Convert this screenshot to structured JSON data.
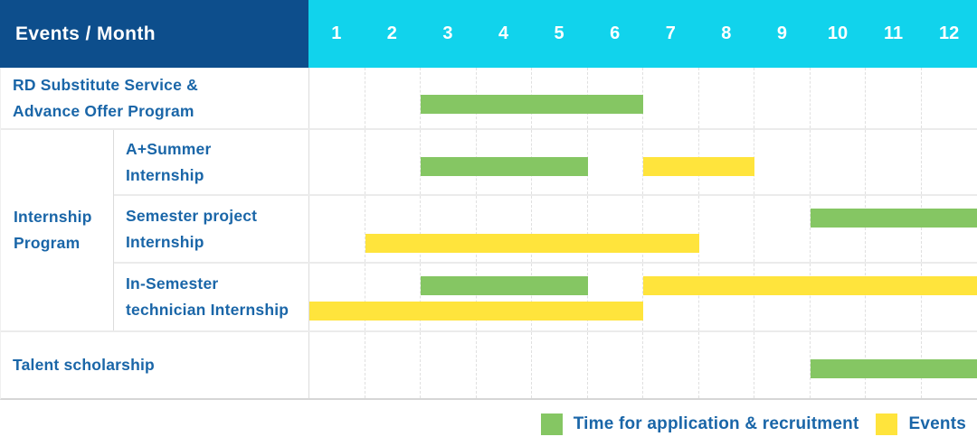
{
  "header": {
    "corner_label": "Events / Month",
    "months": [
      "1",
      "2",
      "3",
      "4",
      "5",
      "6",
      "7",
      "8",
      "9",
      "10",
      "11",
      "12"
    ]
  },
  "colors": {
    "header_navy": "#0D4E8C",
    "header_cyan": "#11D3EC",
    "application_green": "#85C663",
    "event_yellow": "#FFE43C",
    "label_blue": "#1A66A8"
  },
  "legend": {
    "items": [
      {
        "series": "application",
        "label": "Time for application & recruitment"
      },
      {
        "series": "event",
        "label": "Events"
      }
    ]
  },
  "chart_data": {
    "type": "gantt",
    "title": "Events / Month",
    "x_axis": {
      "label": "Month",
      "min": 1,
      "max": 12,
      "ticks": [
        "1",
        "2",
        "3",
        "4",
        "5",
        "6",
        "7",
        "8",
        "9",
        "10",
        "11",
        "12"
      ]
    },
    "series_legend": {
      "application": "Time for application & recruitment",
      "event": "Events"
    },
    "group_label_lines": [
      "Internship",
      "Program"
    ],
    "rows": [
      {
        "label_lines": [
          "RD Substitute Service &",
          "Advance Offer Program"
        ],
        "group": null,
        "bars": [
          {
            "series": "application",
            "start_month": 3,
            "end_month": 6,
            "line": "single"
          }
        ]
      },
      {
        "label_lines": [
          "A+Summer",
          "Internship"
        ],
        "group": "Internship Program",
        "bars": [
          {
            "series": "application",
            "start_month": 3,
            "end_month": 5,
            "line": "single"
          },
          {
            "series": "event",
            "start_month": 7,
            "end_month": 8,
            "line": "single"
          }
        ]
      },
      {
        "label_lines": [
          "Semester project",
          "Internship"
        ],
        "group": "Internship Program",
        "bars": [
          {
            "series": "application",
            "start_month": 10,
            "end_month": 12,
            "line": "top"
          },
          {
            "series": "event",
            "start_month": 2,
            "end_month": 7,
            "line": "bottom"
          }
        ]
      },
      {
        "label_lines": [
          "In-Semester",
          "technician Internship"
        ],
        "group": "Internship Program",
        "bars": [
          {
            "series": "application",
            "start_month": 3,
            "end_month": 5,
            "line": "top"
          },
          {
            "series": "event",
            "start_month": 7,
            "end_month": 12,
            "line": "top"
          },
          {
            "series": "event",
            "start_month": 1,
            "end_month": 6,
            "line": "bottom"
          }
        ]
      },
      {
        "label_lines": [
          "Talent scholarship"
        ],
        "group": null,
        "bars": [
          {
            "series": "application",
            "start_month": 10,
            "end_month": 12,
            "line": "single"
          }
        ]
      }
    ]
  }
}
